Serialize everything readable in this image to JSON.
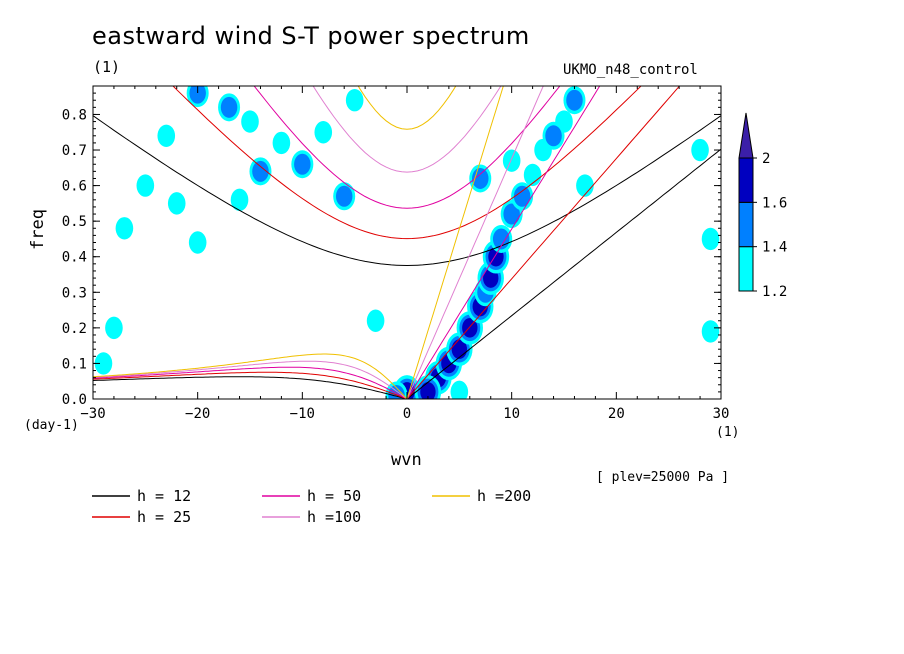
{
  "title": "eastward wind S-T power spectrum",
  "subtitle_left": "(1)",
  "subtitle_right": "UKMO_n48_control",
  "footer_note": "[ plev=25000 Pa ]",
  "chart_data": {
    "type": "heatmap",
    "xlabel": "wvn",
    "ylabel": "freq",
    "x_unit": "(1)",
    "y_unit": "(day-1)",
    "xlim": [
      -30,
      30
    ],
    "ylim": [
      0.0,
      0.88
    ],
    "xticks": [
      -30,
      -20,
      -10,
      0,
      10,
      20,
      30
    ],
    "yticks": [
      0.0,
      0.1,
      0.2,
      0.3,
      0.4,
      0.5,
      0.6,
      0.7,
      0.8
    ],
    "xtick_labels": [
      "-30",
      "-20",
      "-10",
      "0",
      "10",
      "20",
      "30"
    ],
    "ytick_labels": [
      "0.0",
      "0.1",
      "0.2",
      "0.3",
      "0.4",
      "0.5",
      "0.6",
      "0.7",
      "0.8"
    ],
    "colorbar": {
      "levels": [
        1.2,
        1.4,
        1.6,
        2
      ],
      "labels": [
        "1.2",
        "1.4",
        "1.6",
        "2"
      ],
      "colors": [
        "#00ffff",
        "#0080ff",
        "#0000c0",
        "#3b1fa8"
      ]
    },
    "dispersion_curves": [
      {
        "label": "h = 12",
        "h": 12,
        "color": "#000000"
      },
      {
        "label": "h = 25",
        "h": 25,
        "color": "#e00000"
      },
      {
        "label": "h = 50",
        "h": 50,
        "color": "#e000a0"
      },
      {
        "label": "h =100",
        "h": 100,
        "color": "#e080d0"
      },
      {
        "label": "h =200",
        "h": 200,
        "color": "#f0c000"
      }
    ],
    "blobs": [
      {
        "x": 3,
        "y": 0.06,
        "level": 2
      },
      {
        "x": 4,
        "y": 0.1,
        "level": 2
      },
      {
        "x": 5,
        "y": 0.14,
        "level": 2
      },
      {
        "x": 6,
        "y": 0.2,
        "level": 2
      },
      {
        "x": 7,
        "y": 0.26,
        "level": 2
      },
      {
        "x": 7.5,
        "y": 0.3,
        "level": 1
      },
      {
        "x": 8,
        "y": 0.34,
        "level": 2
      },
      {
        "x": 8.5,
        "y": 0.4,
        "level": 2
      },
      {
        "x": 9,
        "y": 0.45,
        "level": 1
      },
      {
        "x": 10,
        "y": 0.52,
        "level": 1
      },
      {
        "x": 11,
        "y": 0.57,
        "level": 1
      },
      {
        "x": 12,
        "y": 0.63,
        "level": 0
      },
      {
        "x": 13,
        "y": 0.7,
        "level": 0
      },
      {
        "x": 15,
        "y": 0.78,
        "level": 0
      },
      {
        "x": 16,
        "y": 0.84,
        "level": 1
      },
      {
        "x": 7,
        "y": 0.62,
        "level": 1
      },
      {
        "x": 10,
        "y": 0.67,
        "level": 0
      },
      {
        "x": 0,
        "y": 0.02,
        "level": 2
      },
      {
        "x": -1,
        "y": 0.01,
        "level": 1
      },
      {
        "x": 2,
        "y": 0.02,
        "level": 2
      },
      {
        "x": 5,
        "y": 0.02,
        "level": 0
      },
      {
        "x": -14,
        "y": 0.64,
        "level": 1
      },
      {
        "x": -12,
        "y": 0.72,
        "level": 0
      },
      {
        "x": -10,
        "y": 0.66,
        "level": 1
      },
      {
        "x": -8,
        "y": 0.75,
        "level": 0
      },
      {
        "x": -20,
        "y": 0.86,
        "level": 1
      },
      {
        "x": -17,
        "y": 0.82,
        "level": 1
      },
      {
        "x": -15,
        "y": 0.78,
        "level": 0
      },
      {
        "x": -5,
        "y": 0.84,
        "level": 0
      },
      {
        "x": -16,
        "y": 0.56,
        "level": 0
      },
      {
        "x": -20,
        "y": 0.44,
        "level": 0
      },
      {
        "x": -27,
        "y": 0.48,
        "level": 0
      },
      {
        "x": -25,
        "y": 0.6,
        "level": 0
      },
      {
        "x": -22,
        "y": 0.55,
        "level": 0
      },
      {
        "x": -3,
        "y": 0.22,
        "level": 0
      },
      {
        "x": -29,
        "y": 0.1,
        "level": 0
      },
      {
        "x": -28,
        "y": 0.2,
        "level": 0
      },
      {
        "x": -23,
        "y": 0.74,
        "level": 0
      },
      {
        "x": 17,
        "y": 0.6,
        "level": 0
      },
      {
        "x": 29,
        "y": 0.45,
        "level": 0
      },
      {
        "x": 28,
        "y": 0.7,
        "level": 0
      },
      {
        "x": 29,
        "y": 0.19,
        "level": 0
      },
      {
        "x": -6,
        "y": 0.57,
        "level": 1
      },
      {
        "x": 14,
        "y": 0.74,
        "level": 1
      }
    ]
  }
}
